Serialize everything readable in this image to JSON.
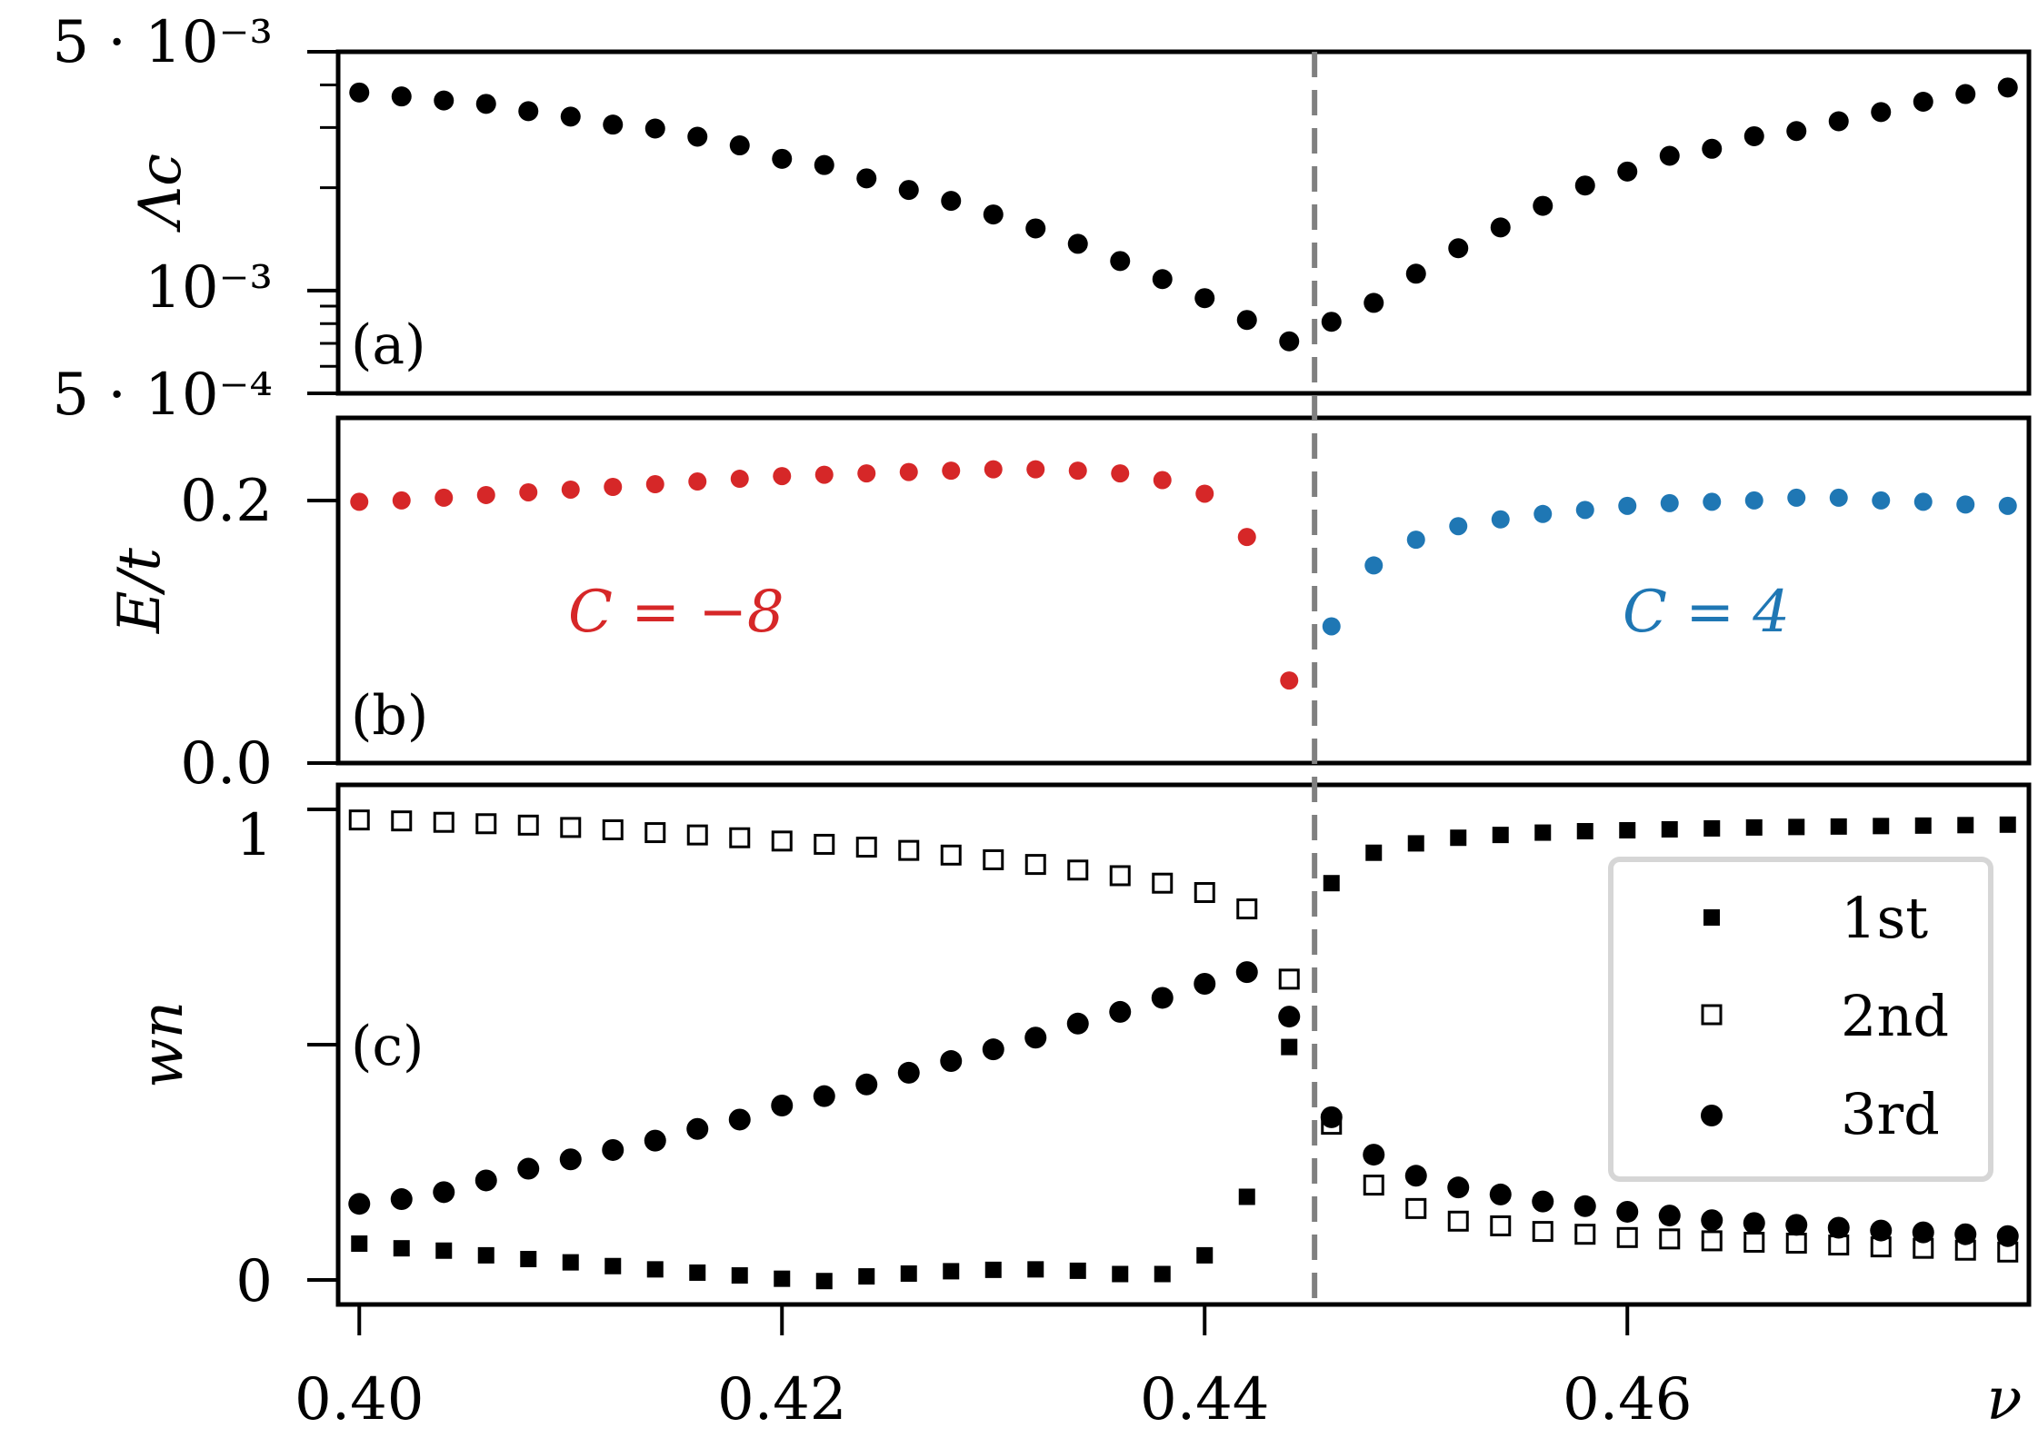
{
  "chart_data": [
    {
      "panel": "a",
      "type": "scatter",
      "panel_label": "(a)",
      "ylabel": "Λc",
      "yscale": "log",
      "ylim": [
        0.0005,
        0.005
      ],
      "ytick_labels": [
        "5 · 10⁻³",
        "10⁻³",
        "5 · 10⁻⁴"
      ],
      "x": [
        0.4,
        0.402,
        0.404,
        0.406,
        0.408,
        0.41,
        0.412,
        0.414,
        0.416,
        0.418,
        0.42,
        0.422,
        0.424,
        0.426,
        0.428,
        0.43,
        0.432,
        0.434,
        0.436,
        0.438,
        0.44,
        0.442,
        0.444,
        0.446,
        0.448,
        0.45,
        0.452,
        0.454,
        0.456,
        0.458,
        0.46,
        0.462,
        0.464,
        0.466,
        0.468,
        0.47,
        0.472,
        0.474,
        0.476,
        0.478
      ],
      "values": [
        0.0038,
        0.0037,
        0.0036,
        0.00352,
        0.00335,
        0.00323,
        0.00306,
        0.00298,
        0.00282,
        0.00266,
        0.00243,
        0.00233,
        0.00213,
        0.00197,
        0.00183,
        0.00167,
        0.00152,
        0.00137,
        0.00122,
        0.00108,
        0.00095,
        0.00082,
        0.00071,
        0.00081,
        0.00092,
        0.00112,
        0.00133,
        0.00153,
        0.00177,
        0.00203,
        0.00223,
        0.00248,
        0.0026,
        0.00283,
        0.00293,
        0.00313,
        0.00333,
        0.00357,
        0.00376,
        0.00393
      ],
      "color": "#000000"
    },
    {
      "panel": "b",
      "type": "scatter",
      "panel_label": "(b)",
      "ylabel": "E/t",
      "ylim": [
        0.0,
        0.255
      ],
      "ytick_labels": [
        "0.2",
        "0.0"
      ],
      "series": [
        {
          "name": "C = -8",
          "annotation": "C = −8",
          "color": "#d62728",
          "x": [
            0.4,
            0.402,
            0.404,
            0.406,
            0.408,
            0.41,
            0.412,
            0.414,
            0.416,
            0.418,
            0.42,
            0.422,
            0.424,
            0.426,
            0.428,
            0.43,
            0.432,
            0.434,
            0.436,
            0.438,
            0.44,
            0.442,
            0.444
          ],
          "values": [
            0.193,
            0.194,
            0.196,
            0.198,
            0.2,
            0.202,
            0.204,
            0.206,
            0.208,
            0.21,
            0.212,
            0.213,
            0.214,
            0.215,
            0.216,
            0.217,
            0.217,
            0.216,
            0.214,
            0.209,
            0.199,
            0.167,
            0.061
          ]
        },
        {
          "name": "C = 4",
          "annotation": "C = 4",
          "color": "#1f77b4",
          "x": [
            0.446,
            0.448,
            0.45,
            0.452,
            0.454,
            0.456,
            0.458,
            0.46,
            0.462,
            0.464,
            0.466,
            0.468,
            0.47,
            0.472,
            0.474,
            0.476,
            0.478
          ],
          "values": [
            0.101,
            0.146,
            0.165,
            0.175,
            0.18,
            0.184,
            0.187,
            0.19,
            0.192,
            0.193,
            0.194,
            0.196,
            0.196,
            0.194,
            0.193,
            0.191,
            0.19
          ]
        }
      ]
    },
    {
      "panel": "c",
      "type": "scatter",
      "panel_label": "(c)",
      "ylabel": "wn",
      "xlabel": "ν",
      "ylim": [
        -0.05,
        1.06
      ],
      "ytick_labels": [
        "1",
        "0"
      ],
      "xtick_labels": [
        "0.40",
        "0.42",
        "0.44",
        "0.46"
      ],
      "xlim": [
        0.399,
        0.479
      ],
      "x": [
        0.4,
        0.402,
        0.404,
        0.406,
        0.408,
        0.41,
        0.412,
        0.414,
        0.416,
        0.418,
        0.42,
        0.422,
        0.424,
        0.426,
        0.428,
        0.43,
        0.432,
        0.434,
        0.436,
        0.438,
        0.44,
        0.442,
        0.444,
        0.446,
        0.448,
        0.45,
        0.452,
        0.454,
        0.456,
        0.458,
        0.46,
        0.462,
        0.464,
        0.466,
        0.468,
        0.47,
        0.472,
        0.474,
        0.476,
        0.478
      ],
      "series": [
        {
          "name": "1st",
          "marker": "filled-square",
          "values": [
            0.08,
            0.07,
            0.065,
            0.055,
            0.047,
            0.04,
            0.032,
            0.025,
            0.018,
            0.012,
            0.005,
            0.0,
            0.01,
            0.016,
            0.021,
            0.024,
            0.025,
            0.022,
            0.015,
            0.015,
            0.055,
            0.18,
            0.5,
            0.85,
            0.915,
            0.935,
            0.947,
            0.953,
            0.958,
            0.961,
            0.963,
            0.965,
            0.967,
            0.969,
            0.97,
            0.971,
            0.972,
            0.973,
            0.974,
            0.975
          ]
        },
        {
          "name": "2nd",
          "marker": "open-square",
          "values": [
            0.985,
            0.983,
            0.98,
            0.977,
            0.974,
            0.969,
            0.964,
            0.958,
            0.953,
            0.947,
            0.94,
            0.933,
            0.927,
            0.92,
            0.91,
            0.9,
            0.89,
            0.878,
            0.866,
            0.85,
            0.83,
            0.795,
            0.645,
            0.335,
            0.205,
            0.155,
            0.128,
            0.118,
            0.106,
            0.1,
            0.093,
            0.09,
            0.086,
            0.083,
            0.081,
            0.077,
            0.073,
            0.07,
            0.066,
            0.062
          ]
        },
        {
          "name": "3rd",
          "marker": "filled-circle",
          "values": [
            0.165,
            0.175,
            0.19,
            0.215,
            0.24,
            0.26,
            0.28,
            0.3,
            0.325,
            0.345,
            0.375,
            0.395,
            0.42,
            0.445,
            0.47,
            0.495,
            0.52,
            0.55,
            0.575,
            0.605,
            0.635,
            0.66,
            0.565,
            0.35,
            0.27,
            0.225,
            0.2,
            0.185,
            0.17,
            0.16,
            0.148,
            0.14,
            0.13,
            0.124,
            0.12,
            0.114,
            0.108,
            0.104,
            0.1,
            0.096
          ]
        }
      ],
      "legend": {
        "location": "right",
        "entries": [
          "1st",
          "2nd",
          "3rd"
        ]
      }
    }
  ],
  "critical_nu": 0.4452
}
